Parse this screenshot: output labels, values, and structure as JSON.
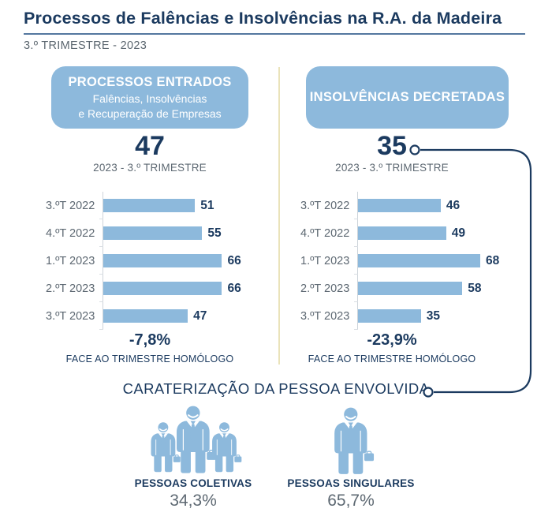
{
  "header": {
    "title": "Processos de Falências e Insolvências na R.A. da Madeira",
    "subtitle": "3.º TRIMESTRE - 2023"
  },
  "panels": [
    {
      "badge_title": "PROCESSOS ENTRADOS",
      "badge_line1": "Falências, Insolvências",
      "badge_line2": "e Recuperação de Empresas",
      "headline_value": "47",
      "headline_period": "2023 - 3.º TRIMESTRE",
      "variation": "-7,8%",
      "variation_caption": "FACE AO TRIMESTRE HOMÓLOGO"
    },
    {
      "badge_title": "INSOLVÊNCIAS DECRETADAS",
      "headline_value": "35",
      "headline_period": "2023 - 3.º TRIMESTRE",
      "variation": "-23,9%",
      "variation_caption": "FACE AO TRIMESTRE HOMÓLOGO"
    }
  ],
  "chart_data": [
    {
      "type": "bar",
      "orientation": "horizontal",
      "title": "PROCESSOS ENTRADOS - Falências, Insolvências e Recuperação de Empresas",
      "categories": [
        "3.ºT 2022",
        "4.ºT 2022",
        "1.ºT 2023",
        "2.ºT 2023",
        "3.ºT 2023"
      ],
      "values": [
        51,
        55,
        66,
        66,
        47
      ],
      "current_value": 47,
      "current_period": "2023 - 3.º TRIMESTRE",
      "yoy_change_pct": -7.8,
      "xlim": [
        0,
        68
      ],
      "bar_color": "#8db9dc",
      "legend": "none",
      "grid": "off"
    },
    {
      "type": "bar",
      "orientation": "horizontal",
      "title": "INSOLVÊNCIAS DECRETADAS",
      "categories": [
        "3.ºT 2022",
        "4.ºT 2022",
        "1.ºT 2023",
        "2.ºT 2023",
        "3.ºT 2023"
      ],
      "values": [
        46,
        49,
        68,
        58,
        35
      ],
      "current_value": 35,
      "current_period": "2023 - 3.º TRIMESTRE",
      "yoy_change_pct": -23.9,
      "xlim": [
        0,
        68
      ],
      "bar_color": "#8db9dc",
      "legend": "none",
      "grid": "off"
    },
    {
      "type": "pie",
      "title": "CARATERIZAÇÃO DA PESSOA ENVOLVIDA",
      "categories": [
        "PESSOAS COLETIVAS",
        "PESSOAS SINGULARES"
      ],
      "values": [
        34.3,
        65.7
      ],
      "unit": "%"
    }
  ],
  "characterization": {
    "heading": "CARATERIZAÇÃO DA PESSOA ENVOLVIDA",
    "groups": [
      {
        "label": "PESSOAS COLETIVAS",
        "value": "34,3%",
        "icon": "business-people-group-icon"
      },
      {
        "label": "PESSOAS SINGULARES",
        "value": "65,7%",
        "icon": "business-person-icon"
      }
    ]
  },
  "colors": {
    "navy": "#1b3a5f",
    "light_blue": "#8db9dc",
    "gray_text": "#5d6872",
    "divider_yellow": "#eae3ba",
    "title_rule": "#54779f"
  }
}
